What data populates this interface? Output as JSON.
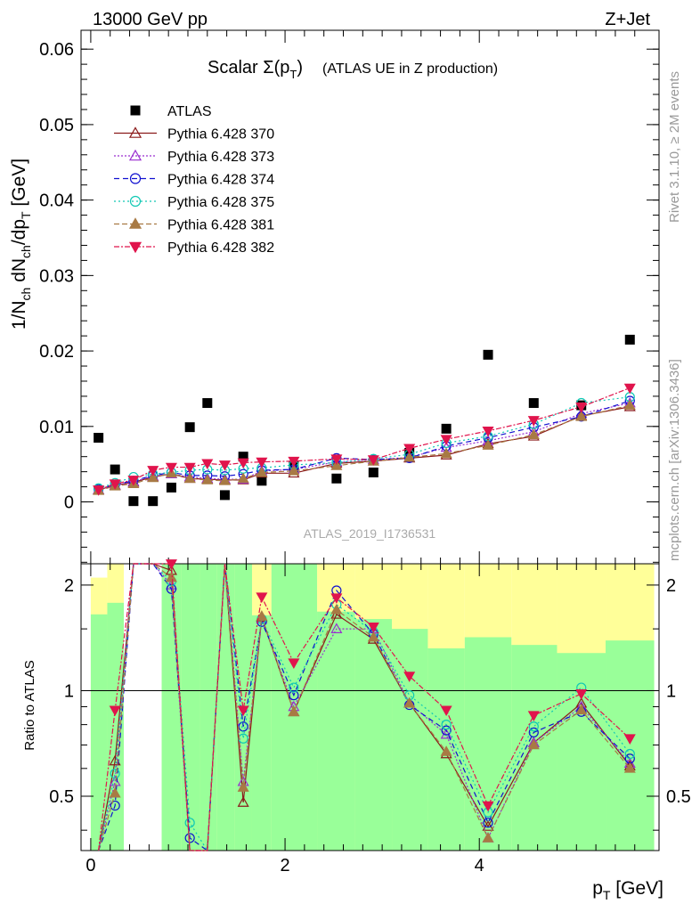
{
  "header": {
    "left": "13000 GeV pp",
    "right": "Z+Jet"
  },
  "side_labels": {
    "top": "Rivet 3.1.10, ≥ 2M events",
    "bottom": "mcplots.cern.ch [arXiv:1306.3436]"
  },
  "watermark": "ATLAS_2019_I1736531",
  "chart_data": {
    "type": "scatter",
    "title": "Scalar Σ(pT) (ATLAS UE in Z production)",
    "title_parts": {
      "main": "Scalar Σ(p",
      "sub": "T",
      "close": ")",
      "rest": "(ATLAS UE in Z production)"
    },
    "ylabel": "1/Nch dNch/dpT [GeV]",
    "ylabel_parts": {
      "a": "1/N",
      "ch1": "ch",
      "b": " dN",
      "ch2": "ch",
      "c": "/dp",
      "t": "T",
      "d": " [GeV]"
    },
    "xlabel": "pT [GeV]",
    "xlabel_parts": {
      "p": "p",
      "t": "T",
      "unit": " [GeV]"
    },
    "ratio_ylabel": "Ratio to ATLAS",
    "xlim": [
      -0.1,
      5.85
    ],
    "ylim": [
      -0.0082,
      0.0625
    ],
    "ratio_ylim": [
      0.35,
      2.3
    ],
    "x_ticks": [
      "0",
      "2",
      "4"
    ],
    "y_ticks": [
      "0",
      "0.01",
      "0.02",
      "0.03",
      "0.04",
      "0.05",
      "0.06"
    ],
    "ratio_ticks": [
      "0.5",
      "1",
      "2"
    ],
    "legend_position": "top-left",
    "x": [
      0.08,
      0.25,
      0.44,
      0.64,
      0.83,
      1.02,
      1.2,
      1.38,
      1.57,
      1.76,
      2.09,
      2.53,
      2.91,
      3.28,
      3.66,
      4.09,
      4.56,
      5.05,
      5.55
    ],
    "series": [
      {
        "name": "ATLAS",
        "color": "#000000",
        "marker": "square",
        "dash": "",
        "values": [
          0.0085,
          0.0043,
          0.0001,
          0.0001,
          0.0019,
          0.0099,
          0.0131,
          0.0009,
          0.006,
          0.0028,
          0.0048,
          0.0031,
          0.0039,
          0.0065,
          0.0097,
          0.0195,
          0.0131,
          0.0128,
          0.0215
        ]
      },
      {
        "name": "Pythia 6.428 370",
        "color": "#8b1a1a",
        "marker": "tri-up-open",
        "dash": "",
        "values": [
          0.0016,
          0.0022,
          0.0026,
          0.0033,
          0.0037,
          0.0031,
          0.003,
          0.0029,
          0.0029,
          0.0038,
          0.0038,
          0.0051,
          0.0054,
          0.0058,
          0.0062,
          0.0077,
          0.0087,
          0.0114,
          0.0126
        ]
      },
      {
        "name": "Pythia 6.428 373",
        "color": "#9a2fd0",
        "marker": "tri-up-open",
        "dash": "2,2",
        "values": [
          0.0016,
          0.0022,
          0.0027,
          0.0034,
          0.0037,
          0.0033,
          0.0031,
          0.003,
          0.003,
          0.0041,
          0.0043,
          0.0053,
          0.0056,
          0.0059,
          0.0072,
          0.0081,
          0.0093,
          0.0117,
          0.0131
        ]
      },
      {
        "name": "Pythia 6.428 374",
        "color": "#1010d0",
        "marker": "circle-open",
        "dash": "6,4",
        "values": [
          0.0017,
          0.0023,
          0.0028,
          0.0035,
          0.0039,
          0.0035,
          0.0035,
          0.0034,
          0.0037,
          0.0042,
          0.0043,
          0.0058,
          0.0056,
          0.0058,
          0.0074,
          0.0085,
          0.0099,
          0.0113,
          0.0134
        ]
      },
      {
        "name": "Pythia 6.428 375",
        "color": "#10c8b4",
        "marker": "circle-open",
        "dash": "2,3",
        "values": [
          0.0018,
          0.0025,
          0.0033,
          0.0037,
          0.0039,
          0.0042,
          0.0043,
          0.0042,
          0.0044,
          0.0045,
          0.0049,
          0.0052,
          0.0057,
          0.0063,
          0.0078,
          0.0087,
          0.0103,
          0.0131,
          0.0139
        ]
      },
      {
        "name": "Pythia 6.428 381",
        "color": "#a87a44",
        "marker": "tri-up-filled",
        "dash": "6,3",
        "values": [
          0.0015,
          0.0021,
          0.0024,
          0.0032,
          0.0038,
          0.0031,
          0.0029,
          0.0028,
          0.0031,
          0.0039,
          0.0041,
          0.0048,
          0.0054,
          0.0059,
          0.0064,
          0.0075,
          0.0089,
          0.0113,
          0.0128
        ]
      },
      {
        "name": "Pythia 6.428 382",
        "color": "#e0144c",
        "marker": "tri-down-filled",
        "dash": "6,2,2,2",
        "values": [
          0.0016,
          0.0024,
          0.0029,
          0.0042,
          0.0046,
          0.0046,
          0.0051,
          0.0049,
          0.0052,
          0.0053,
          0.0054,
          0.0057,
          0.0056,
          0.0071,
          0.0083,
          0.0094,
          0.0108,
          0.0126,
          0.0151
        ]
      }
    ],
    "ratio_series": [
      {
        "name": "Pythia 6.428 370",
        "values": [
          0.19,
          0.63,
          3.0,
          3.0,
          2.2,
          0.3,
          0.23,
          3.0,
          0.48,
          1.62,
          0.87,
          1.65,
          1.4,
          0.92,
          0.66,
          0.41,
          0.71,
          0.92,
          0.61
        ]
      },
      {
        "name": "Pythia 6.428 373",
        "values": [
          0.19,
          0.55,
          3.0,
          3.0,
          2.0,
          0.32,
          0.24,
          3.0,
          0.55,
          1.6,
          0.9,
          1.5,
          1.5,
          0.92,
          0.75,
          0.38,
          0.71,
          0.9,
          0.62
        ]
      },
      {
        "name": "Pythia 6.428 374",
        "values": [
          0.2,
          0.47,
          3.0,
          3.0,
          1.95,
          0.38,
          0.27,
          3.0,
          0.79,
          1.57,
          0.97,
          1.93,
          1.45,
          0.91,
          0.77,
          0.42,
          0.76,
          0.87,
          0.64
        ]
      },
      {
        "name": "Pythia 6.428 375",
        "values": [
          0.21,
          0.58,
          3.0,
          3.0,
          2.05,
          0.42,
          0.33,
          3.0,
          0.73,
          1.6,
          1.02,
          1.76,
          1.47,
          0.97,
          0.8,
          0.45,
          0.79,
          1.02,
          0.66
        ]
      },
      {
        "name": "Pythia 6.428 381",
        "values": [
          0.18,
          0.51,
          3.0,
          3.0,
          2.1,
          0.31,
          0.22,
          3.0,
          0.53,
          1.63,
          0.87,
          1.7,
          1.42,
          0.92,
          0.67,
          0.38,
          0.7,
          0.88,
          0.6
        ]
      },
      {
        "name": "Pythia 6.428 382",
        "values": [
          0.19,
          0.88,
          3.0,
          3.0,
          2.3,
          0.31,
          0.27,
          3.0,
          0.88,
          1.85,
          1.2,
          1.84,
          1.52,
          1.1,
          0.88,
          0.47,
          0.85,
          0.98,
          0.73
        ]
      }
    ],
    "ratio_band_edges": [
      0.0,
      0.17,
      0.34,
      0.54,
      0.73,
      0.93,
      1.12,
      1.3,
      1.48,
      1.66,
      1.86,
      2.33,
      2.72,
      3.1,
      3.47,
      3.85,
      4.33,
      4.8,
      5.3,
      5.8
    ],
    "ratio_band_inner": [
      [
        0.35,
        1.65
      ],
      [
        0.35,
        1.78
      ],
      null,
      null,
      [
        0.35,
        2.3
      ],
      [
        0.35,
        2.3
      ],
      [
        0.35,
        2.3
      ],
      [
        0.35,
        2.3
      ],
      [
        0.35,
        2.3
      ],
      [
        0.35,
        1.64
      ],
      [
        0.35,
        2.3
      ],
      [
        0.35,
        1.68
      ],
      [
        0.35,
        1.6
      ],
      [
        0.35,
        1.5
      ],
      [
        0.35,
        1.32
      ],
      [
        0.35,
        1.42
      ],
      [
        0.35,
        1.35
      ],
      [
        0.35,
        1.28
      ],
      [
        0.35,
        1.39
      ]
    ],
    "ratio_band_outer": [
      [
        0.35,
        2.1
      ],
      [
        0.35,
        2.3
      ],
      null,
      null,
      [
        0.35,
        2.3
      ],
      [
        0.35,
        2.3
      ],
      [
        0.35,
        2.3
      ],
      [
        0.35,
        2.3
      ],
      [
        0.35,
        2.3
      ],
      [
        0.35,
        2.3
      ],
      [
        0.35,
        2.3
      ],
      [
        0.35,
        2.3
      ],
      [
        0.35,
        2.3
      ],
      [
        0.35,
        2.3
      ],
      [
        0.35,
        2.3
      ],
      [
        0.35,
        2.3
      ],
      [
        0.35,
        2.3
      ],
      [
        0.35,
        2.3
      ],
      [
        0.35,
        2.3
      ]
    ]
  }
}
